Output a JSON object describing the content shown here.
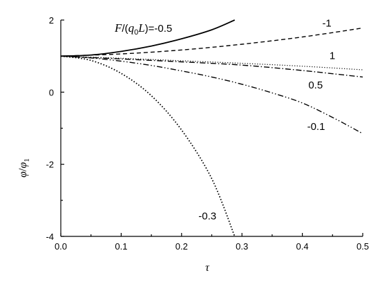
{
  "chart_data": {
    "type": "line",
    "title": "",
    "xlabel": "τ",
    "ylabel_main": "φ",
    "ylabel_sep": "/",
    "ylabel_den": "φ",
    "ylabel_den_sub": "1",
    "xlim": [
      0,
      0.5
    ],
    "ylim": [
      -4,
      2
    ],
    "xticks": [
      0.0,
      0.1,
      0.2,
      0.3,
      0.4,
      0.5
    ],
    "xtick_labels": [
      "0.0",
      "0.1",
      "0.2",
      "0.3",
      "0.4",
      "0.5"
    ],
    "yticks": [
      -4,
      -2,
      0,
      2
    ],
    "ytick_labels": [
      "-4",
      "-2",
      "0",
      "2"
    ],
    "grid": false,
    "legend_title": {
      "F": "F",
      "slash": "/(",
      "q": "q",
      "q_sub": "0",
      "L": "L",
      "close": ")="
    },
    "series": [
      {
        "name": "-0.5",
        "style": "solid",
        "x": [
          0,
          0.05,
          0.1,
          0.15,
          0.2,
          0.25,
          0.288
        ],
        "y": [
          1.0,
          1.03,
          1.13,
          1.28,
          1.48,
          1.73,
          2.0
        ]
      },
      {
        "name": "-1",
        "style": "dash",
        "x": [
          0,
          0.1,
          0.2,
          0.3,
          0.4,
          0.5
        ],
        "y": [
          1.0,
          1.06,
          1.17,
          1.33,
          1.53,
          1.78
        ]
      },
      {
        "name": "1",
        "style": "dot-fine",
        "x": [
          0,
          0.1,
          0.2,
          0.3,
          0.4,
          0.5
        ],
        "y": [
          1.0,
          0.94,
          0.87,
          0.8,
          0.72,
          0.62
        ]
      },
      {
        "name": "0.5",
        "style": "dash-dot",
        "x": [
          0,
          0.1,
          0.2,
          0.3,
          0.4,
          0.5
        ],
        "y": [
          1.0,
          0.92,
          0.84,
          0.75,
          0.6,
          0.42
        ]
      },
      {
        "name": "-0.1",
        "style": "dash-dot-dot",
        "x": [
          0,
          0.05,
          0.1,
          0.15,
          0.2,
          0.25,
          0.3,
          0.35,
          0.4,
          0.45,
          0.5
        ],
        "y": [
          1.0,
          0.95,
          0.86,
          0.74,
          0.59,
          0.42,
          0.22,
          -0.02,
          -0.3,
          -0.7,
          -1.15
        ]
      },
      {
        "name": "-0.3",
        "style": "dot",
        "x": [
          0,
          0.05,
          0.1,
          0.15,
          0.2,
          0.25,
          0.288
        ],
        "y": [
          1.0,
          0.88,
          0.52,
          -0.1,
          -1.05,
          -2.4,
          -4.0
        ]
      }
    ],
    "curve_labels": [
      {
        "series": "-1",
        "text": "-1",
        "x": 0.433,
        "y": 1.82
      },
      {
        "series": "1",
        "text": "1",
        "x": 0.445,
        "y": 0.92
      },
      {
        "series": "0.5",
        "text": "0.5",
        "x": 0.41,
        "y": 0.1
      },
      {
        "series": "-0.1",
        "text": "-0.1",
        "x": 0.408,
        "y": -1.05
      },
      {
        "series": "-0.3",
        "text": "-0.3",
        "x": 0.228,
        "y": -3.53
      }
    ]
  }
}
